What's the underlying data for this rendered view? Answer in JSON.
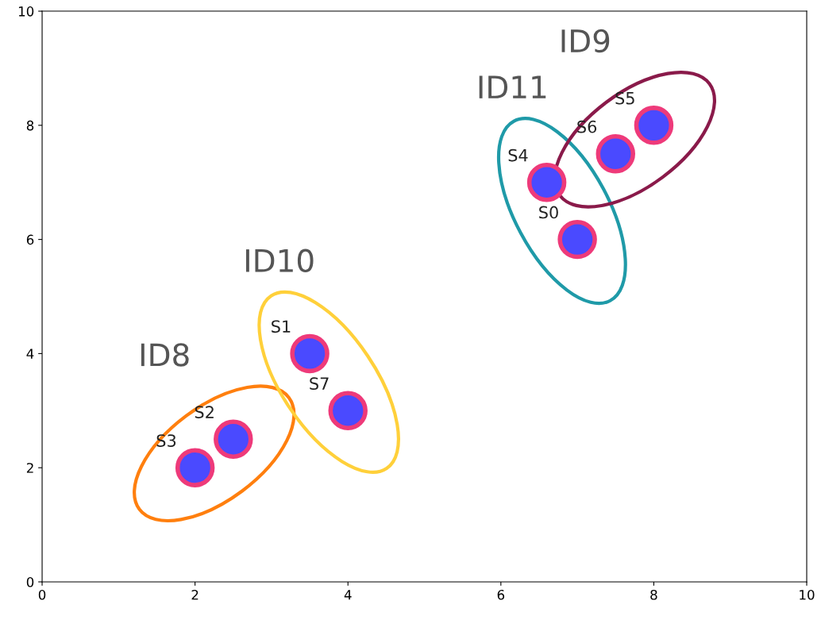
{
  "chart_data": {
    "type": "scatter",
    "xlim": [
      0,
      10
    ],
    "ylim": [
      0,
      10
    ],
    "xticks": [
      0,
      2,
      4,
      6,
      8,
      10
    ],
    "yticks": [
      0,
      2,
      4,
      6,
      8,
      10
    ],
    "grid": false,
    "marker": "circle",
    "series": [
      {
        "color": "#4a4aff",
        "x": [
          2.5,
          2
        ],
        "values": [
          2.5,
          2
        ],
        "value_labels": [
          "S2",
          "S3"
        ]
      },
      {
        "color": "#4a4aff",
        "x": [
          3.5,
          4
        ],
        "values": [
          4,
          3
        ],
        "value_labels": [
          "S1",
          "S7"
        ]
      },
      {
        "color": "#4a4aff",
        "x": [
          6.6,
          7
        ],
        "values": [
          7,
          6
        ],
        "value_labels": [
          "S4",
          "S0"
        ]
      },
      {
        "color": "#4a4aff",
        "x": [
          8,
          7.5
        ],
        "values": [
          8,
          7.5
        ],
        "value_labels": [
          "S5",
          "S6"
        ]
      }
    ],
    "annotations": [
      "ID8",
      "ID10",
      "ID11",
      "ID9"
    ]
  }
}
